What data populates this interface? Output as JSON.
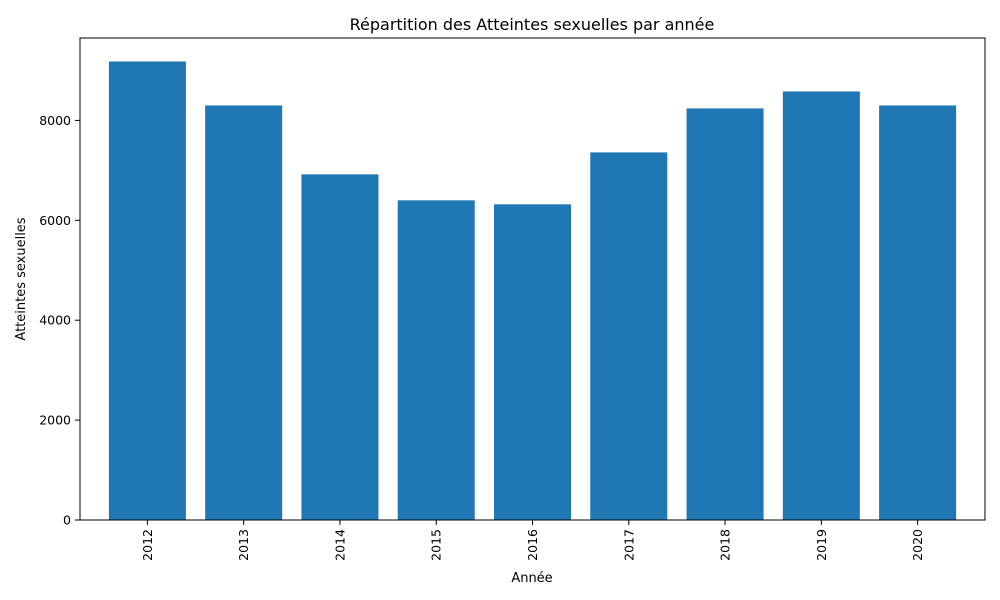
{
  "chart_data": {
    "type": "bar",
    "title": "Répartition des Atteintes sexuelles par année",
    "xlabel": "Année",
    "ylabel": "Atteintes sexuelles",
    "categories": [
      "2012",
      "2013",
      "2014",
      "2015",
      "2016",
      "2017",
      "2018",
      "2019",
      "2020"
    ],
    "values": [
      9180,
      8300,
      6920,
      6400,
      6320,
      7360,
      8240,
      8580,
      8300
    ],
    "ylim": [
      0,
      9650
    ],
    "yticks": [
      0,
      2000,
      4000,
      6000,
      8000
    ],
    "ytick_labels": [
      "0",
      "2000",
      "4000",
      "6000",
      "8000"
    ],
    "bar_color": "#1f77b4",
    "grid": false,
    "xtick_rotation": "vertical"
  }
}
